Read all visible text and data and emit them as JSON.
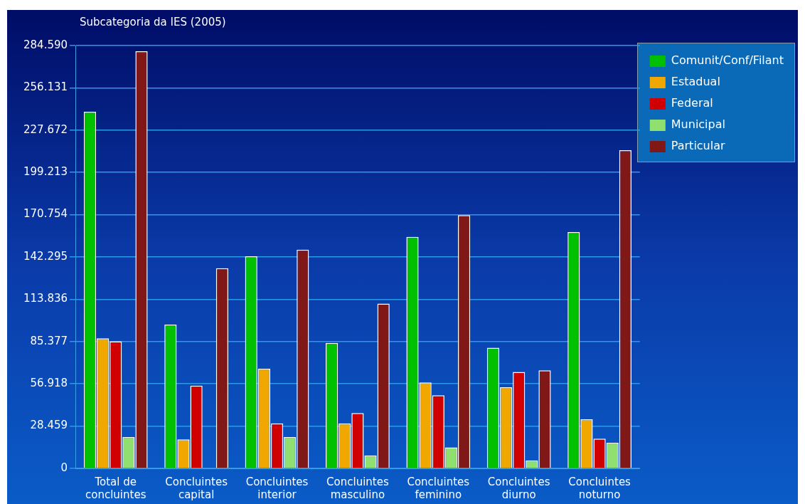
{
  "chart_data": {
    "type": "bar",
    "title": "Subcategoria da IES (2005)",
    "categories": [
      "Total de concluintes",
      "Concluintes capital",
      "Concluintes interior",
      "Concluintes masculino",
      "Concluintes feminino",
      "Concluintes diurno",
      "Concluintes noturno"
    ],
    "series": [
      {
        "name": "Comunit/Conf/Filant",
        "color": "#00c000",
        "values": [
          240000,
          96800,
          142800,
          84400,
          155800,
          81200,
          159100
        ]
      },
      {
        "name": "Estadual",
        "color": "#f0a800",
        "values": [
          87600,
          19500,
          67100,
          30300,
          57900,
          54600,
          33000
        ]
      },
      {
        "name": "Federal",
        "color": "#d00000",
        "values": [
          85500,
          55700,
          30300,
          37300,
          49200,
          64900,
          20000
        ]
      },
      {
        "name": "Municipal",
        "color": "#90e070",
        "values": [
          21100,
          0,
          21100,
          8700,
          14100,
          5400,
          17300
        ]
      },
      {
        "name": "Particular",
        "color": "#801818",
        "values": [
          280800,
          134700,
          147200,
          110900,
          170400,
          66000,
          214200
        ]
      }
    ],
    "ylim": [
      0,
      284590
    ],
    "yticks": [
      {
        "value": 0,
        "label": "0"
      },
      {
        "value": 28459,
        "label": "28.459"
      },
      {
        "value": 56918,
        "label": "56.918"
      },
      {
        "value": 85377,
        "label": "85.377"
      },
      {
        "value": 113836,
        "label": "113.836"
      },
      {
        "value": 142295,
        "label": "142.295"
      },
      {
        "value": 170754,
        "label": "170.754"
      },
      {
        "value": 199213,
        "label": "199.213"
      },
      {
        "value": 227672,
        "label": "227.672"
      },
      {
        "value": 256131,
        "label": "256.131"
      },
      {
        "value": 284590,
        "label": "284.590"
      }
    ],
    "grid": true,
    "legend": "top right"
  }
}
